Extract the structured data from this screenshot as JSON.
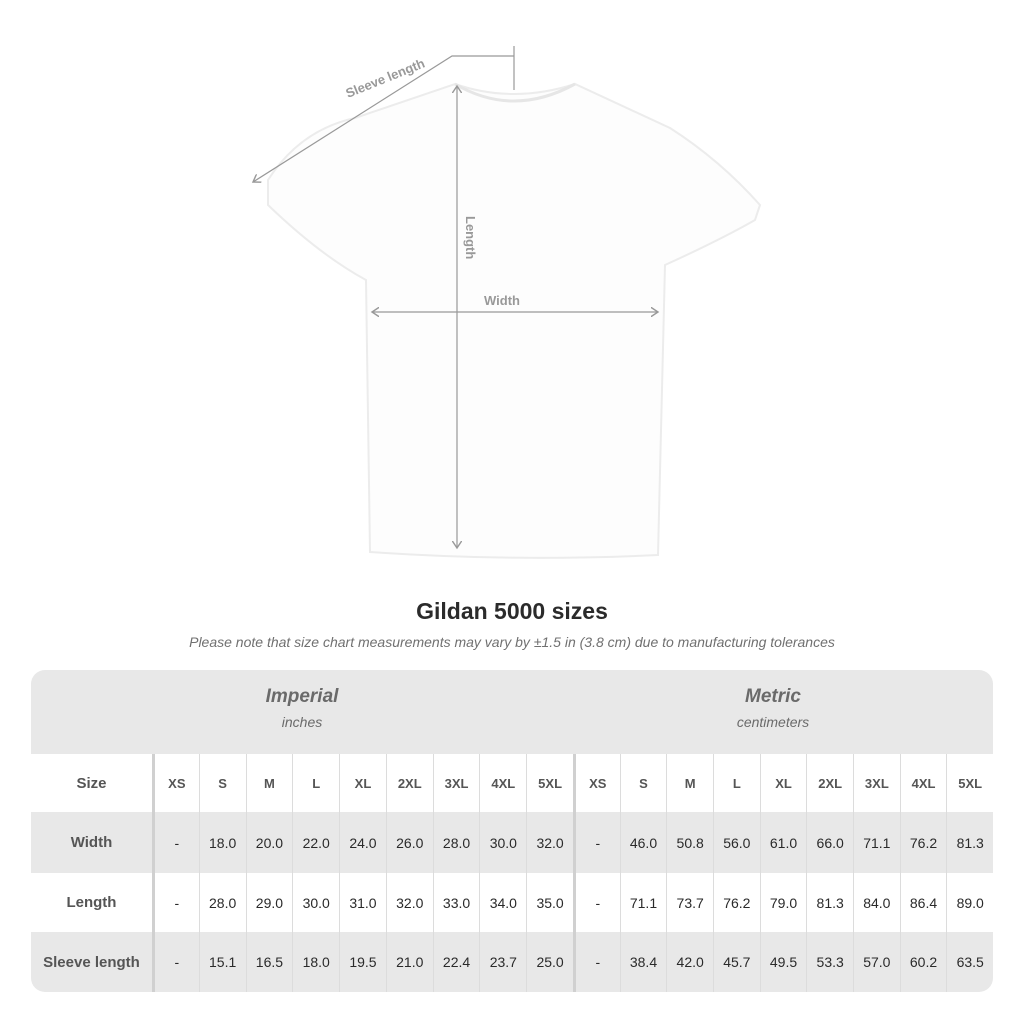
{
  "diagram": {
    "sleeve_label": "Sleeve length",
    "length_label": "Length",
    "width_label": "Width"
  },
  "title": "Gildan 5000 sizes",
  "note": "Please note that size chart measurements may vary by ±1.5 in (3.8 cm) due to manufacturing tolerances",
  "groups": [
    {
      "name": "Imperial",
      "unit": "inches"
    },
    {
      "name": "Metric",
      "unit": "centimeters"
    }
  ],
  "header_label": "Size",
  "sizes": [
    "XS",
    "S",
    "M",
    "L",
    "XL",
    "2XL",
    "3XL",
    "4XL",
    "5XL"
  ],
  "rows": [
    {
      "label": "Width",
      "imperial": [
        "-",
        "18.0",
        "20.0",
        "22.0",
        "24.0",
        "26.0",
        "28.0",
        "30.0",
        "32.0"
      ],
      "metric": [
        "-",
        "46.0",
        "50.8",
        "56.0",
        "61.0",
        "66.0",
        "71.1",
        "76.2",
        "81.3"
      ]
    },
    {
      "label": "Length",
      "imperial": [
        "-",
        "28.0",
        "29.0",
        "30.0",
        "31.0",
        "32.0",
        "33.0",
        "34.0",
        "35.0"
      ],
      "metric": [
        "-",
        "71.1",
        "73.7",
        "76.2",
        "79.0",
        "81.3",
        "84.0",
        "86.4",
        "89.0"
      ]
    },
    {
      "label": "Sleeve length",
      "imperial": [
        "-",
        "15.1",
        "16.5",
        "18.0",
        "19.5",
        "21.0",
        "22.4",
        "23.7",
        "25.0"
      ],
      "metric": [
        "-",
        "38.4",
        "42.0",
        "45.7",
        "49.5",
        "53.3",
        "57.0",
        "60.2",
        "63.5"
      ]
    }
  ]
}
